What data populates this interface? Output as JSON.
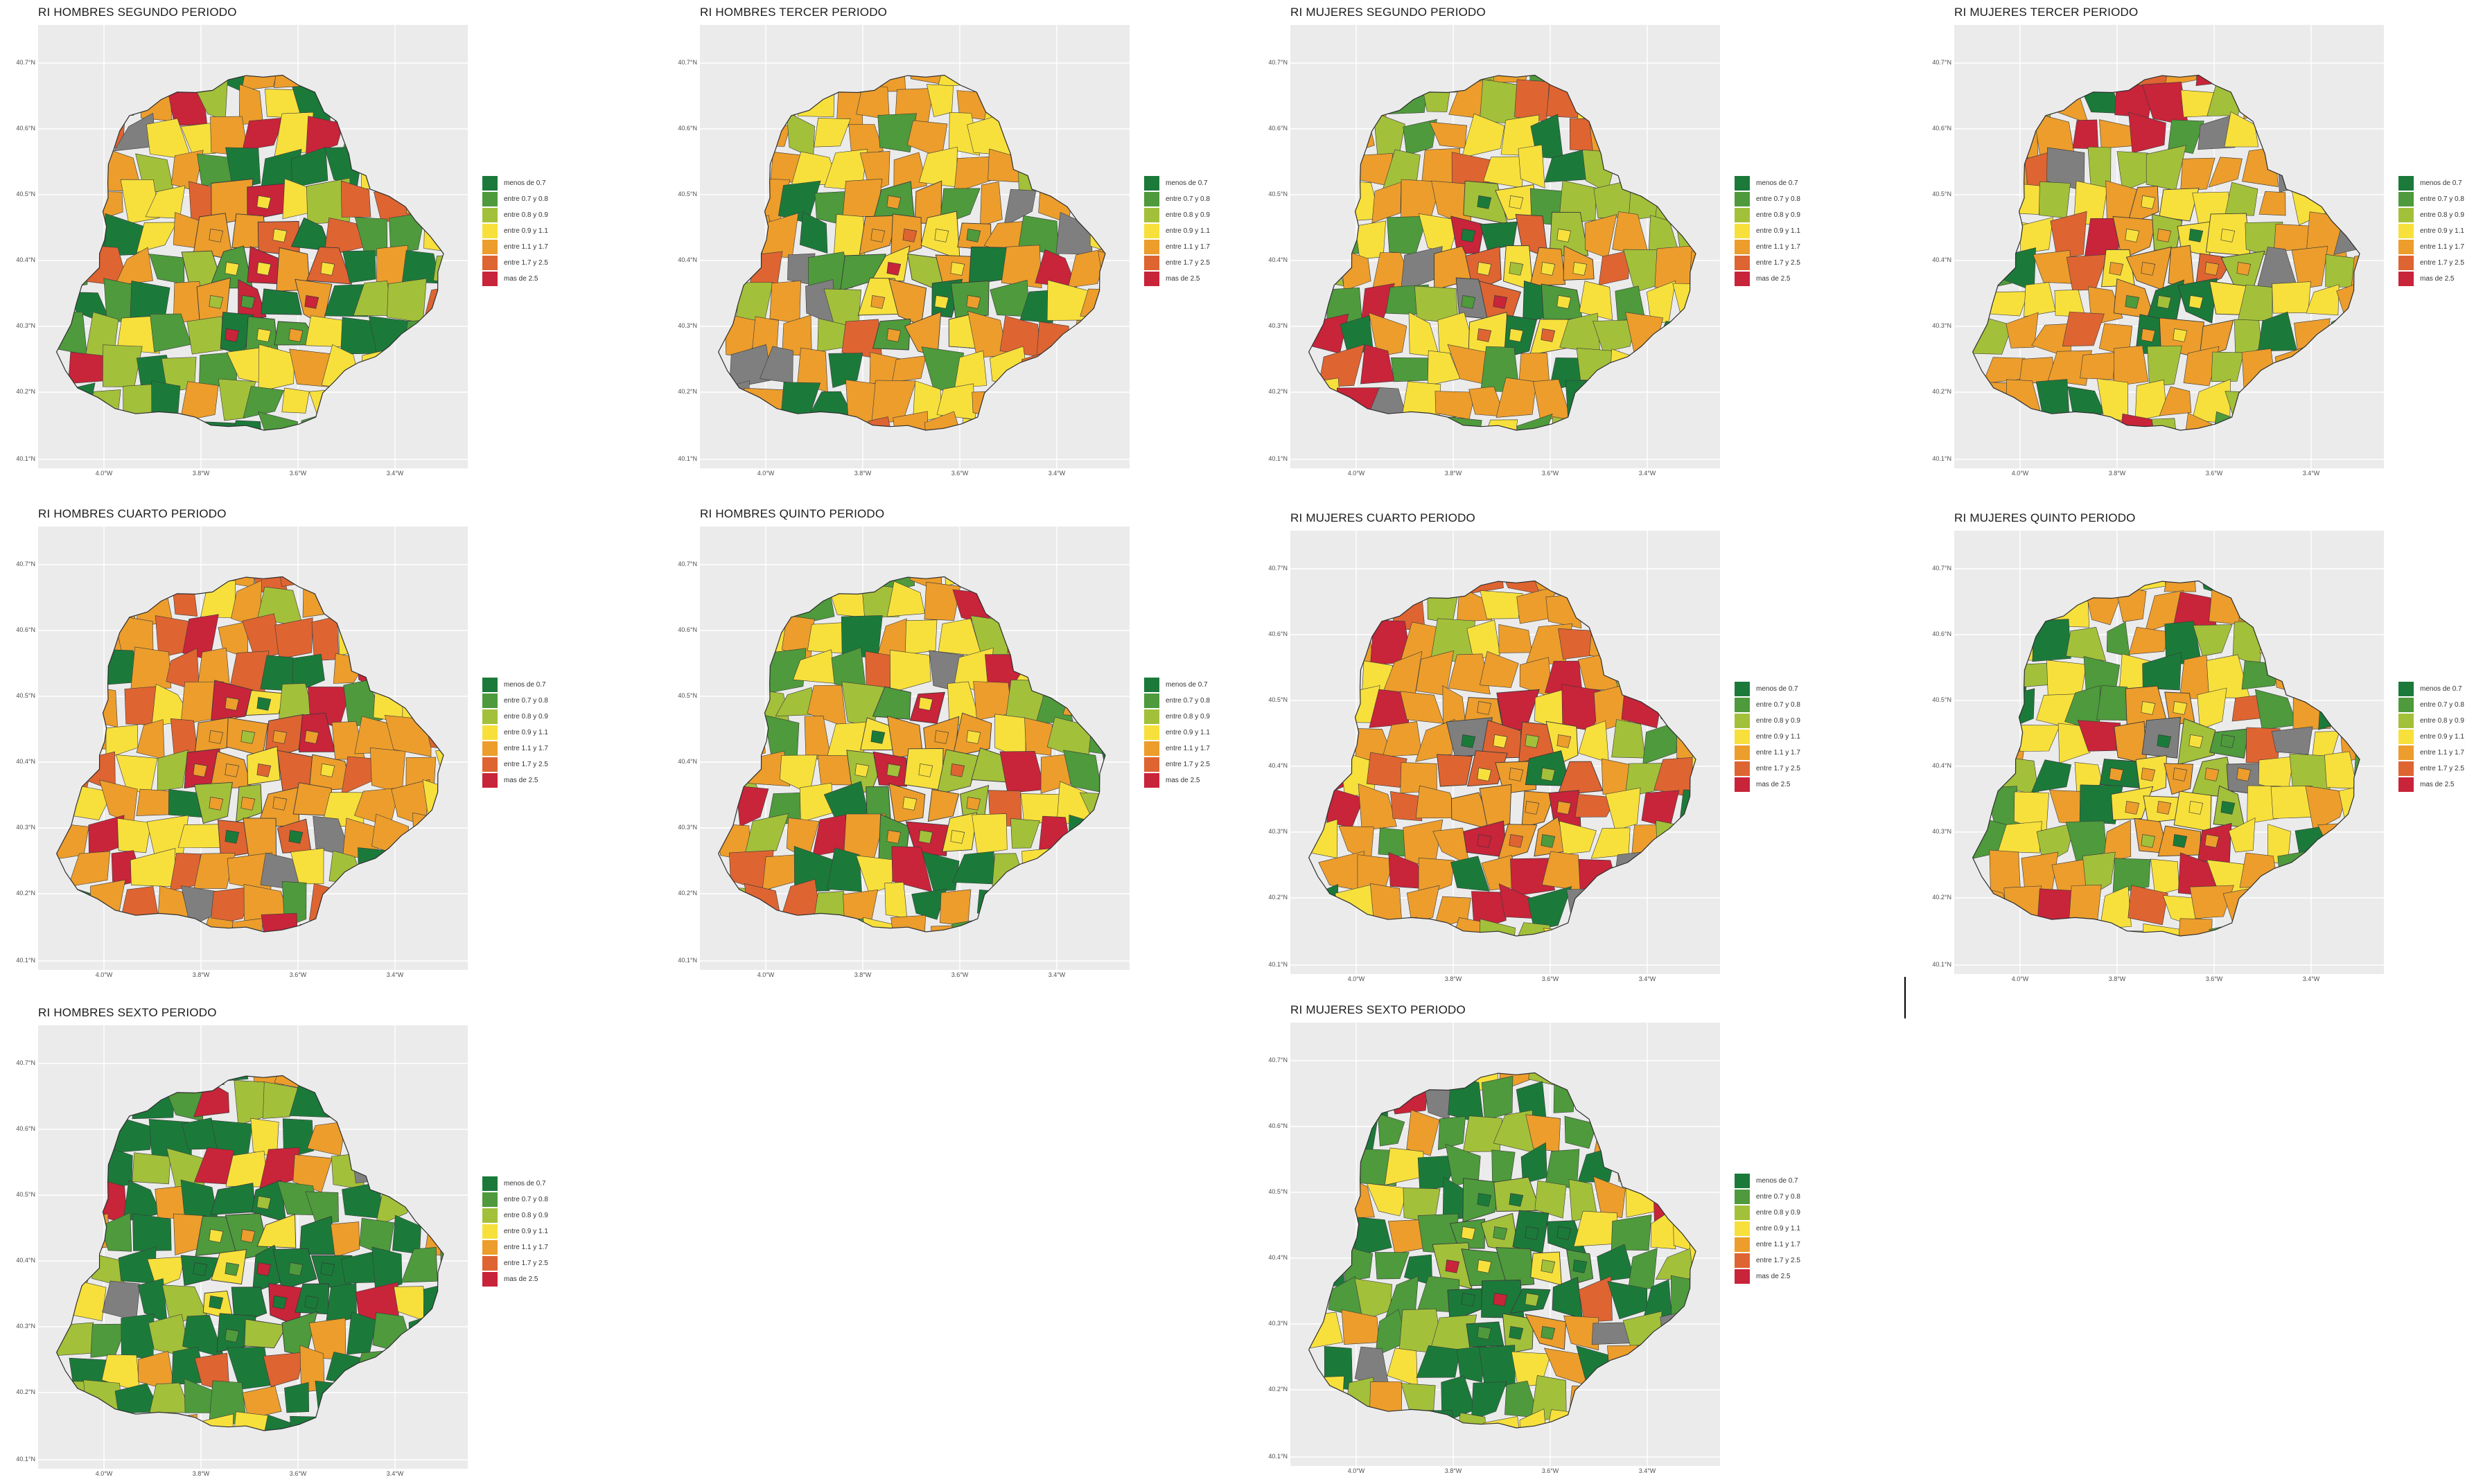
{
  "legend": {
    "labels": [
      "menos de 0.7",
      "entre 0.7 y 0.8",
      "entre 0.8 y 0.9",
      "entre 0.9 y 1.1",
      "entre 1.1 y 1.7",
      "entre 1.7 y 2.5",
      "mas de 2.5"
    ],
    "colors": [
      "#1b7a3a",
      "#4e9a3c",
      "#a3c03a",
      "#f7e03c",
      "#ec9d2c",
      "#de6432",
      "#c8243a"
    ],
    "na_color": "#7f7f7f"
  },
  "axes": {
    "y_ticks": [
      "40.7°N",
      "40.6°N",
      "40.5°N",
      "40.4°N",
      "40.3°N",
      "40.2°N",
      "40.1°N"
    ],
    "x_ticks": [
      "4.0°W",
      "3.8°W",
      "3.6°W",
      "3.4°W"
    ]
  },
  "chart_data": {
    "type": "choropleth",
    "panels": [
      {
        "title": "RI HOMBRES SEGUNDO PERIODO",
        "palette_mix": [
          0.16,
          0.13,
          0.15,
          0.2,
          0.2,
          0.08,
          0.08
        ]
      },
      {
        "title": "RI HOMBRES TERCER PERIODO",
        "palette_mix": [
          0.08,
          0.07,
          0.1,
          0.22,
          0.38,
          0.09,
          0.06
        ]
      },
      {
        "title": "RI MUJERES SEGUNDO PERIODO",
        "palette_mix": [
          0.12,
          0.12,
          0.15,
          0.24,
          0.24,
          0.06,
          0.07
        ]
      },
      {
        "title": "RI MUJERES TERCER PERIODO",
        "palette_mix": [
          0.09,
          0.08,
          0.1,
          0.24,
          0.38,
          0.06,
          0.05
        ]
      },
      {
        "title": "RI HOMBRES CUARTO PERIODO",
        "palette_mix": [
          0.05,
          0.04,
          0.07,
          0.12,
          0.45,
          0.18,
          0.09
        ]
      },
      {
        "title": "RI HOMBRES QUINTO PERIODO",
        "palette_mix": [
          0.12,
          0.11,
          0.18,
          0.22,
          0.27,
          0.05,
          0.05
        ]
      },
      {
        "title": "RI MUJERES CUARTO PERIODO",
        "palette_mix": [
          0.05,
          0.04,
          0.06,
          0.12,
          0.46,
          0.18,
          0.09
        ]
      },
      {
        "title": "RI MUJERES QUINTO PERIODO",
        "palette_mix": [
          0.11,
          0.1,
          0.15,
          0.34,
          0.2,
          0.05,
          0.05
        ]
      },
      {
        "title": "RI HOMBRES SEXTO PERIODO",
        "palette_mix": [
          0.4,
          0.15,
          0.18,
          0.09,
          0.12,
          0.02,
          0.04
        ]
      },
      {
        "title": "RI MUJERES SEXTO PERIODO",
        "palette_mix": [
          0.32,
          0.17,
          0.16,
          0.15,
          0.14,
          0.02,
          0.04
        ]
      }
    ]
  }
}
